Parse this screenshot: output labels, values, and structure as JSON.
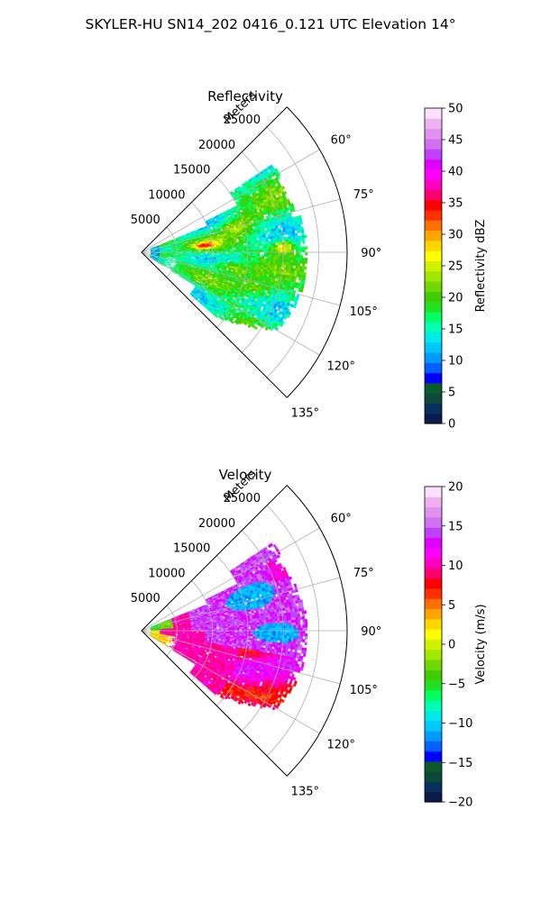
{
  "figure": {
    "suptitle": "SKYLER-HU  SN14_202  0416_0.121 UTC Elevation 14°"
  },
  "chart_data": [
    {
      "type": "heatmap",
      "projection": "polar-sector",
      "title": "Reflectivity",
      "r_axis_label": "Meters",
      "r_ticks": [
        5000,
        10000,
        15000,
        20000,
        25000
      ],
      "r_tick_labels": [
        "5000",
        "10000",
        "15000",
        "20000",
        "25000"
      ],
      "r_max": 29000,
      "theta_range_deg": [
        45,
        135
      ],
      "theta_ticks": [
        60,
        75,
        90,
        105,
        120,
        135
      ],
      "theta_tick_labels": [
        "60°",
        "75°",
        "90°",
        "105°",
        "120°",
        "135°"
      ],
      "grid": true,
      "colorbar": {
        "label": "Reflectivity dBZ",
        "vmin": 0,
        "vmax": 50,
        "ticks": [
          0,
          5,
          10,
          15,
          20,
          25,
          30,
          35,
          40,
          45,
          50
        ],
        "tick_labels": [
          "0",
          "5",
          "10",
          "15",
          "20",
          "25",
          "30",
          "35",
          "40",
          "45",
          "50"
        ],
        "colors": [
          "#0a1a4a",
          "#06305e",
          "#0b4a3a",
          "#0a5a2a",
          "#0000ff",
          "#0060ff",
          "#0099ff",
          "#00c8ff",
          "#00e8e8",
          "#00ffb0",
          "#00ff60",
          "#20e020",
          "#40cc00",
          "#70d800",
          "#a0e800",
          "#d0f000",
          "#ffff00",
          "#ffd700",
          "#ffa500",
          "#ff7000",
          "#ff3000",
          "#ff0000",
          "#ff0070",
          "#ff00c0",
          "#ff00ff",
          "#e000ff",
          "#c040ff",
          "#d070f0",
          "#e090f0",
          "#f0b0f0",
          "#fce0fc"
        ]
      },
      "field_summary": {
        "dominant_range": [
          15,
          25
        ],
        "peaks": [
          {
            "theta_deg": 84,
            "range_m": 9000,
            "value": 34
          },
          {
            "theta_deg": 88,
            "range_m": 20000,
            "value": 32
          },
          {
            "theta_deg": 75,
            "range_m": 14000,
            "value": 28
          },
          {
            "theta_deg": 100,
            "range_m": 13000,
            "value": 28
          }
        ],
        "data_theta_range_deg": [
          55,
          130
        ],
        "data_range_max_m": 22500
      }
    },
    {
      "type": "heatmap",
      "projection": "polar-sector",
      "title": "Velocity",
      "r_axis_label": "Meters",
      "r_ticks": [
        5000,
        10000,
        15000,
        20000,
        25000
      ],
      "r_tick_labels": [
        "5000",
        "10000",
        "15000",
        "20000",
        "25000"
      ],
      "r_max": 29000,
      "theta_range_deg": [
        45,
        135
      ],
      "theta_ticks": [
        60,
        75,
        90,
        105,
        120,
        135
      ],
      "theta_tick_labels": [
        "60°",
        "75°",
        "90°",
        "105°",
        "120°",
        "135°"
      ],
      "grid": true,
      "colorbar": {
        "label": "Velocity (m/s)",
        "vmin": -20,
        "vmax": 20,
        "ticks": [
          -20,
          -15,
          -10,
          -5,
          0,
          5,
          10,
          15,
          20
        ],
        "tick_labels": [
          "−20",
          "−15",
          "−10",
          "−5",
          "0",
          "5",
          "10",
          "15",
          "20"
        ],
        "colors": [
          "#0a1a4a",
          "#06305e",
          "#0b4a3a",
          "#0a5a2a",
          "#0000ff",
          "#0060ff",
          "#0099ff",
          "#00c8ff",
          "#00e8e8",
          "#00ffb0",
          "#00ff60",
          "#20e020",
          "#40cc00",
          "#70d800",
          "#a0e800",
          "#d0f000",
          "#ffff00",
          "#ffd700",
          "#ffa500",
          "#ff7000",
          "#ff3000",
          "#ff0000",
          "#ff0070",
          "#ff00c0",
          "#ff00ff",
          "#e000ff",
          "#c040ff",
          "#d070f0",
          "#e090f0",
          "#f0b0f0",
          "#fce0fc"
        ]
      },
      "field_summary": {
        "near_north_value": -5,
        "near_south_value": 2,
        "inner_band_value": 10,
        "southern_sector_value": 10,
        "outer_magenta_value": 14,
        "northeast_core_value": -11,
        "east_core_value": -11,
        "data_theta_range_deg": [
          55,
          130
        ],
        "data_range_max_m": 22500
      }
    }
  ]
}
